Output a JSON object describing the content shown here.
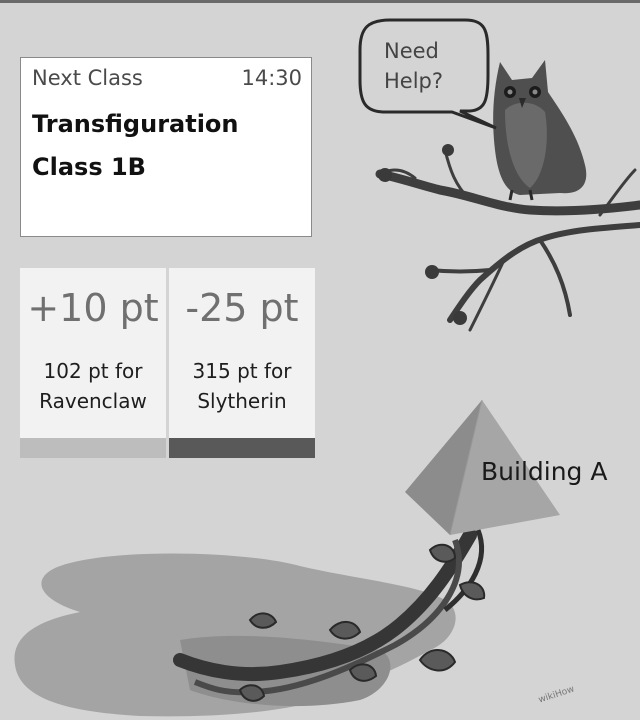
{
  "next_class": {
    "label": "Next Class",
    "time": "14:30",
    "subject": "Transfiguration",
    "group": "Class 1B"
  },
  "house_points": [
    {
      "delta": "+10 pt",
      "total_line1": "102 pt for",
      "total_line2": "Ravenclaw",
      "bar_color": "#bdbdbd"
    },
    {
      "delta": "-25 pt",
      "total_line1": "315 pt for",
      "total_line2": "Slytherin",
      "bar_color": "#595959"
    }
  ],
  "help_bubble": {
    "line1": "Need",
    "line2": "Help?"
  },
  "map": {
    "building_label": "Building A"
  },
  "watermark": "wikiHow",
  "colors": {
    "background": "#d4d4d4",
    "card": "#ffffff",
    "tile": "#f2f2f2",
    "ravenclaw_bar": "#bdbdbd",
    "slytherin_bar": "#595959"
  },
  "icons": [
    "owl-icon",
    "speech-bubble-icon",
    "pyramid-icon",
    "vine-icon",
    "branch-icon",
    "puddle-shape"
  ]
}
